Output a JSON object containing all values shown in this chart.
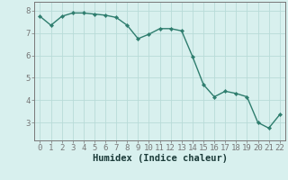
{
  "x": [
    0,
    1,
    2,
    3,
    4,
    5,
    6,
    7,
    8,
    9,
    10,
    11,
    12,
    13,
    14,
    15,
    16,
    17,
    18,
    19,
    20,
    21,
    22
  ],
  "y": [
    7.75,
    7.35,
    7.75,
    7.9,
    7.9,
    7.85,
    7.8,
    7.7,
    7.35,
    6.75,
    6.95,
    7.2,
    7.2,
    7.1,
    5.95,
    4.7,
    4.15,
    4.4,
    4.3,
    4.15,
    3.0,
    2.75,
    3.35
  ],
  "line_color": "#2e7d6e",
  "marker": "D",
  "marker_size": 2.2,
  "bg_color": "#d8f0ee",
  "grid_color": "#b8dbd8",
  "axis_color": "#777777",
  "xlabel": "Humidex (Indice chaleur)",
  "xlabel_fontsize": 7.5,
  "tick_fontsize": 6.5,
  "ylim": [
    2.2,
    8.4
  ],
  "xlim": [
    -0.5,
    22.5
  ],
  "yticks": [
    3,
    4,
    5,
    6,
    7,
    8
  ],
  "xticks": [
    0,
    1,
    2,
    3,
    4,
    5,
    6,
    7,
    8,
    9,
    10,
    11,
    12,
    13,
    14,
    15,
    16,
    17,
    18,
    19,
    20,
    21,
    22
  ],
  "linewidth": 1.0
}
